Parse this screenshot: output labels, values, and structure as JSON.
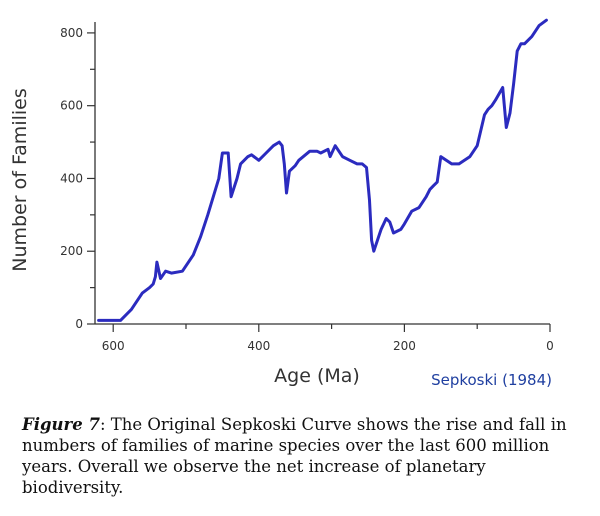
{
  "chart_data": {
    "type": "line",
    "xlabel": "Age (Ma)",
    "ylabel": "Number of Families",
    "credit": "Sepkoski (1984)",
    "xlim": [
      625,
      0
    ],
    "ylim": [
      0,
      830
    ],
    "x_ticks": [
      600,
      400,
      200,
      0
    ],
    "y_ticks": [
      0,
      200,
      400,
      600,
      800
    ],
    "grid": false,
    "colors": {
      "line": "#2b2bbf",
      "credit": "#1f3fa0",
      "axis": "#333333"
    },
    "series": [
      {
        "x": [
          620,
          605,
          590,
          575,
          560,
          550,
          545,
          542,
          540,
          535,
          528,
          520,
          505,
          490,
          480,
          470,
          455,
          450,
          442,
          438,
          430,
          425,
          415,
          410,
          400,
          390,
          380,
          372,
          368,
          365,
          362,
          358,
          350,
          345,
          330,
          320,
          315,
          305,
          302,
          295,
          285,
          275,
          265,
          258,
          252,
          248,
          245,
          242,
          232,
          225,
          220,
          215,
          205,
          200,
          190,
          180,
          170,
          165,
          160,
          155,
          150,
          135,
          125,
          110,
          100,
          90,
          85,
          80,
          75,
          65,
          60,
          55,
          50,
          45,
          40,
          35,
          25,
          15,
          5
        ],
        "y": [
          10,
          10,
          10,
          40,
          85,
          100,
          110,
          130,
          170,
          125,
          145,
          140,
          145,
          190,
          240,
          300,
          400,
          470,
          470,
          350,
          400,
          440,
          460,
          465,
          450,
          470,
          490,
          500,
          490,
          440,
          360,
          420,
          435,
          450,
          475,
          475,
          470,
          480,
          460,
          490,
          460,
          450,
          440,
          440,
          430,
          340,
          230,
          200,
          260,
          290,
          280,
          250,
          260,
          275,
          310,
          320,
          350,
          370,
          380,
          390,
          460,
          440,
          440,
          460,
          490,
          575,
          590,
          600,
          615,
          650,
          540,
          580,
          660,
          750,
          770,
          770,
          790,
          820,
          835
        ]
      }
    ]
  },
  "caption": {
    "label": "Figure 7",
    "text": ": The Original Sepkoski Curve shows the rise and fall in numbers of families of marine species over the last 600 million years. Overall we observe the net increase of planetary biodiversity."
  }
}
